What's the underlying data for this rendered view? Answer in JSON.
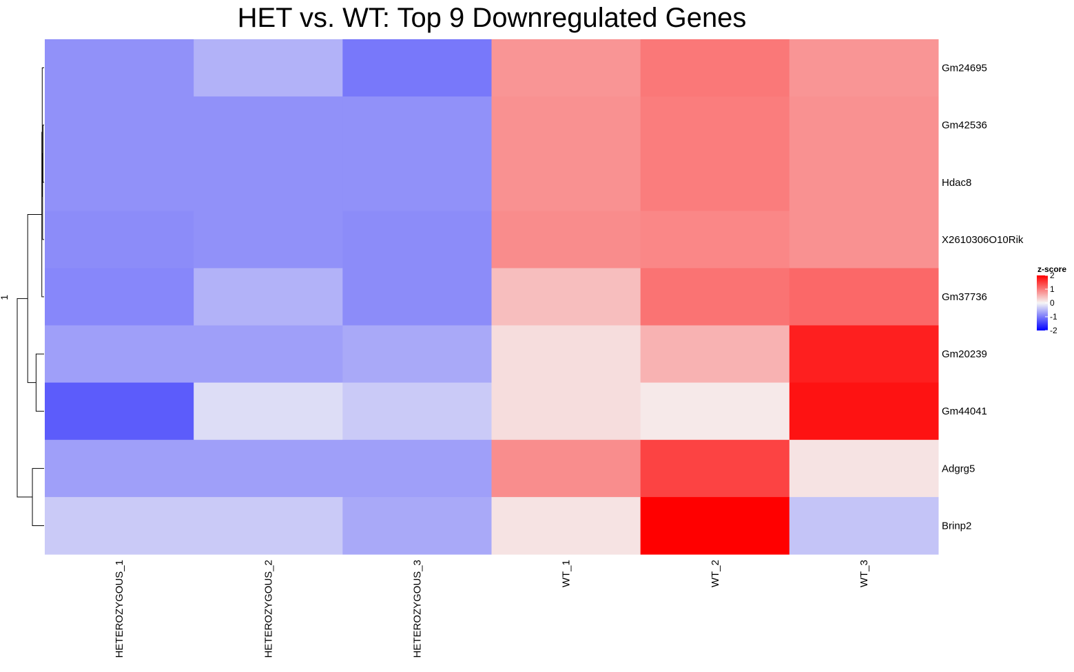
{
  "chart_data": {
    "type": "heatmap",
    "title": "HET vs. WT: Top 9 Downregulated Genes",
    "columns": [
      "HETEROZYGOUS_1",
      "HETEROZYGOUS_2",
      "HETEROZYGOUS_3",
      "WT_1",
      "WT_2",
      "WT_3"
    ],
    "rows": [
      "Gm24695",
      "Gm42536",
      "Hdac8",
      "X2610306O10Rik",
      "Gm37736",
      "Gm20239",
      "Gm44041",
      "Adgrg5",
      "Brinp2"
    ],
    "values": [
      [
        -0.82,
        -0.55,
        -1.02,
        0.78,
        1.02,
        0.78
      ],
      [
        -0.82,
        -0.82,
        -0.82,
        0.82,
        0.98,
        0.82
      ],
      [
        -0.82,
        -0.82,
        -0.82,
        0.82,
        0.98,
        0.82
      ],
      [
        -0.86,
        -0.82,
        -0.86,
        0.86,
        0.9,
        0.82
      ],
      [
        -0.9,
        -0.55,
        -0.86,
        0.45,
        1.06,
        1.15
      ],
      [
        -0.7,
        -0.7,
        -0.62,
        0.2,
        0.55,
        1.75
      ],
      [
        -1.25,
        -0.2,
        -0.35,
        0.2,
        0.1,
        1.85
      ],
      [
        -0.7,
        -0.7,
        -0.7,
        0.85,
        1.45,
        0.15
      ],
      [
        -0.35,
        -0.35,
        -0.62,
        0.15,
        2.0,
        -0.4
      ]
    ],
    "color_scale": {
      "title": "z-score",
      "min": -2,
      "max": 2,
      "ticks": [
        "2",
        "1",
        "0",
        "-1",
        "-2"
      ],
      "low_color": "#0000ff",
      "mid_color": "#f5f5f5",
      "high_color": "#ff0000"
    },
    "dendrogram": {
      "side": "left",
      "axis_label": "1"
    }
  }
}
